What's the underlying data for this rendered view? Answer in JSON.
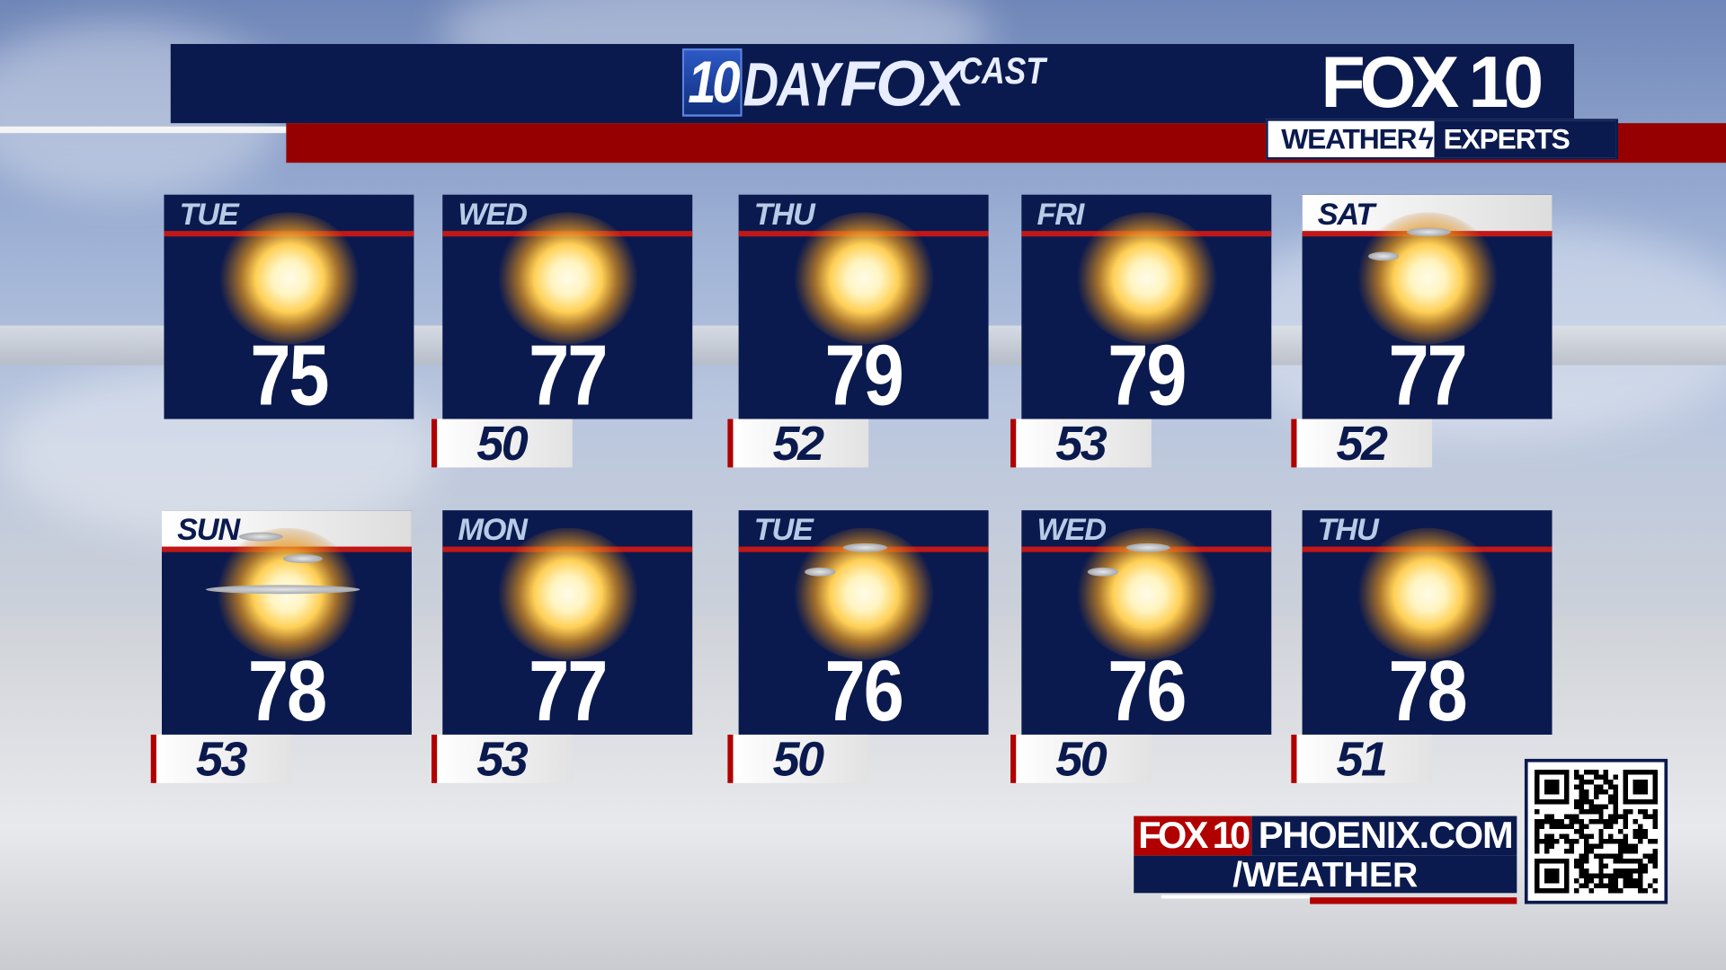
{
  "header": {
    "title_num": "10",
    "title_day": "DAY",
    "title_fox": "FOX",
    "title_cast": "CAST",
    "logo": "FOX 10",
    "tagline_left": "WEATHER",
    "tagline_right": "EXPERTS"
  },
  "colors": {
    "navy": "#0b1a4e",
    "red": "#960000"
  },
  "days": [
    {
      "day": "TUE",
      "high": "75",
      "low": "",
      "icon": "sunny"
    },
    {
      "day": "WED",
      "high": "77",
      "low": "50",
      "icon": "sunny"
    },
    {
      "day": "THU",
      "high": "79",
      "low": "52",
      "icon": "sunny"
    },
    {
      "day": "FRI",
      "high": "79",
      "low": "53",
      "icon": "sunny"
    },
    {
      "day": "SAT",
      "high": "77",
      "low": "52",
      "icon": "mostly-sunny"
    },
    {
      "day": "SUN",
      "high": "78",
      "low": "53",
      "icon": "partly-cloudy"
    },
    {
      "day": "MON",
      "high": "77",
      "low": "53",
      "icon": "sunny"
    },
    {
      "day": "TUE",
      "high": "76",
      "low": "50",
      "icon": "mostly-sunny"
    },
    {
      "day": "WED",
      "high": "76",
      "low": "50",
      "icon": "mostly-sunny"
    },
    {
      "day": "THU",
      "high": "78",
      "low": "51",
      "icon": "sunny"
    }
  ],
  "footer": {
    "brand": "FOX 10",
    "site": "PHOENIX.COM",
    "path": "/WEATHER",
    "qr": "qr-code"
  }
}
